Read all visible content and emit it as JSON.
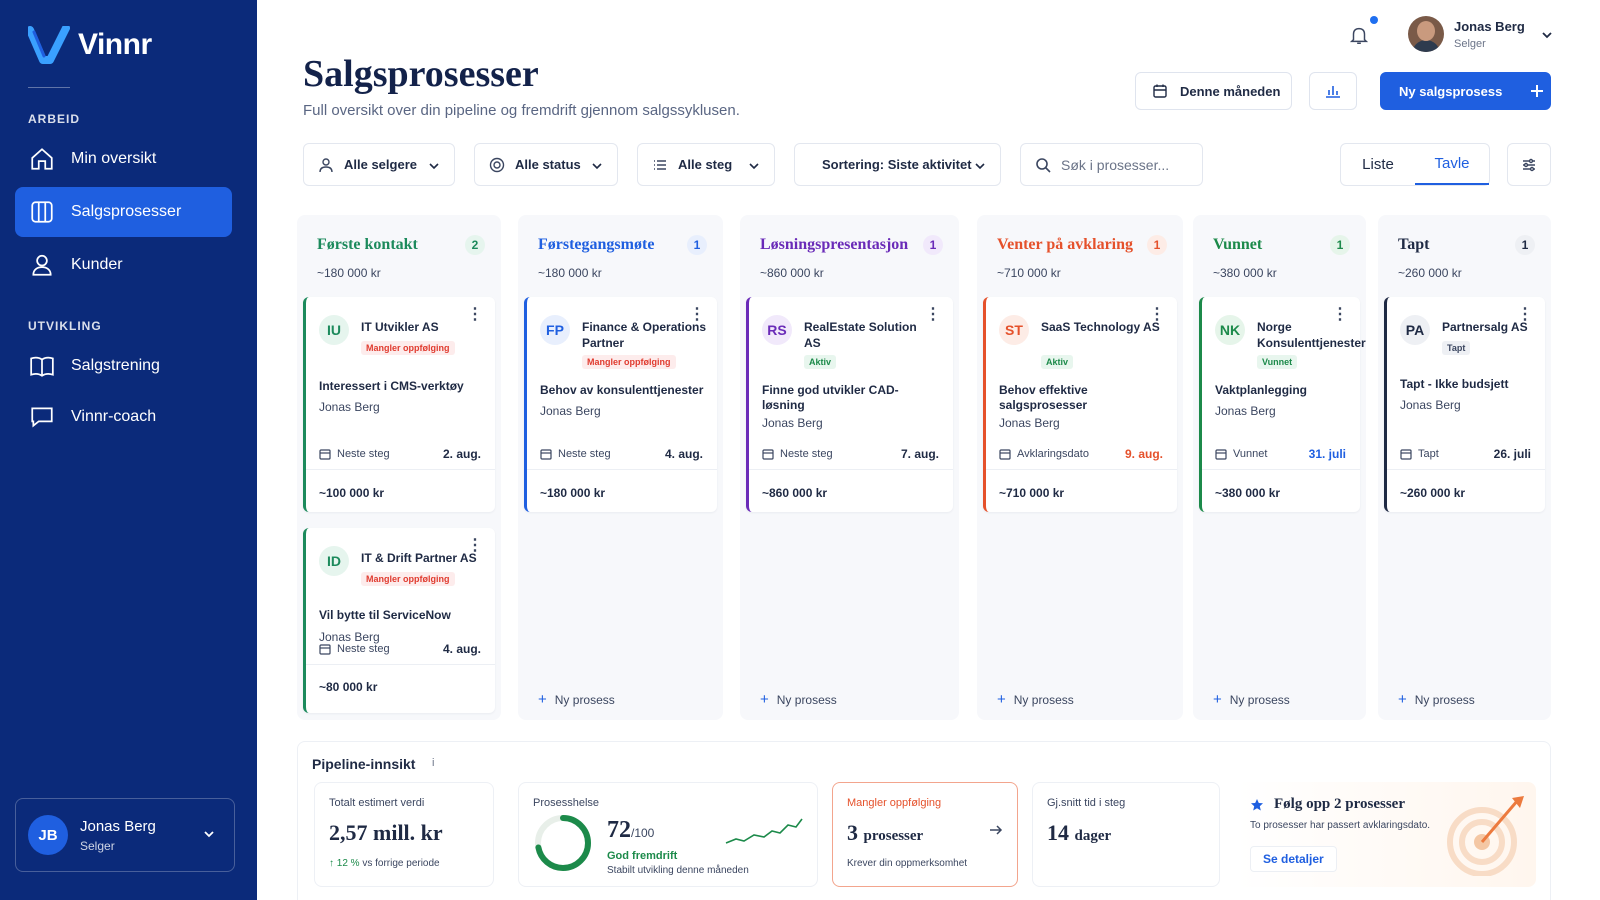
{
  "app": {
    "name": "Vinnr"
  },
  "sidebar": {
    "sections": [
      {
        "label": "ARBEID",
        "items": [
          {
            "label": "Min oversikt",
            "icon": "home-icon"
          },
          {
            "label": "Salgsprosesser",
            "icon": "board-icon",
            "active": true
          },
          {
            "label": "Kunder",
            "icon": "user-icon"
          }
        ]
      },
      {
        "label": "UTVIKLING",
        "items": [
          {
            "label": "Salgstrening",
            "icon": "book-icon"
          },
          {
            "label": "Vinnr-coach",
            "icon": "chat-icon"
          }
        ]
      }
    ],
    "user": {
      "initials": "JB",
      "name": "Jonas Berg",
      "role": "Selger"
    }
  },
  "topbar": {
    "user": {
      "name": "Jonas Berg",
      "role": "Selger"
    }
  },
  "page": {
    "title": "Salgsprosesser",
    "subtitle": "Full oversikt over din pipeline og fremdrift gjennom salgssyklusen."
  },
  "actions": {
    "period": "Denne måneden",
    "new_label": "Ny salgsprosess"
  },
  "filters": {
    "sellers": "Alle selgere",
    "status": "Alle status",
    "steps": "Alle steg",
    "sort": "Sortering: Siste aktivitet",
    "search_placeholder": "Søk i prosesser..."
  },
  "view": {
    "list": "Liste",
    "board": "Tavle",
    "active": "Tavle"
  },
  "columns": [
    {
      "title": "Første kontakt",
      "count": "2",
      "total": "~180 000 kr",
      "color": "#1c8a5c",
      "new_label": "",
      "cards": [
        {
          "initials": "IU",
          "company": "IT Utvikler AS",
          "badge": "Mangler oppfølging",
          "badge_type": "red",
          "desc": "Interessert i CMS-verktøy",
          "owner": "Jonas Berg",
          "step_label": "Neste steg",
          "step_date": "2. aug.",
          "value": "~100 000 kr"
        },
        {
          "initials": "ID",
          "company": "IT & Drift Partner AS",
          "badge": "Mangler oppfølging",
          "badge_type": "red",
          "desc": "Vil bytte til ServiceNow",
          "owner": "Jonas Berg",
          "step_label": "Neste steg",
          "step_date": "4. aug.",
          "value": "~80 000 kr"
        }
      ]
    },
    {
      "title": "Førstegangsmøte",
      "count": "1",
      "total": "~180 000 kr",
      "color": "#1f5fe0",
      "new_label": "Ny prosess",
      "cards": [
        {
          "initials": "FP",
          "company": "Finance & Operations Partner",
          "badge": "Mangler oppfølging",
          "badge_type": "red",
          "desc": "Behov av konsulenttjenester",
          "owner": "Jonas Berg",
          "step_label": "Neste steg",
          "step_date": "4. aug.",
          "value": "~180 000 kr"
        }
      ]
    },
    {
      "title": "Løsningspresentasjon",
      "count": "1",
      "total": "~860 000 kr",
      "color": "#6a2bb8",
      "new_label": "Ny prosess",
      "cards": [
        {
          "initials": "RS",
          "company": "RealEstate Solution AS",
          "badge": "Aktiv",
          "badge_type": "green",
          "desc": "Finne god utvikler CAD-løsning",
          "owner": "Jonas Berg",
          "step_label": "Neste steg",
          "step_date": "7. aug.",
          "value": "~860 000 kr"
        }
      ]
    },
    {
      "title": "Venter på avklaring",
      "count": "1",
      "total": "~710 000 kr",
      "color": "#e5512b",
      "new_label": "Ny prosess",
      "cards": [
        {
          "initials": "ST",
          "company": "SaaS Technology AS",
          "badge": "Aktiv",
          "badge_type": "green",
          "desc": "Behov effektive salgsprosesser",
          "owner": "Jonas Berg",
          "step_label": "Avklaringsdato",
          "step_date": "9. aug.",
          "value": "~710 000 kr"
        }
      ]
    },
    {
      "title": "Vunnet",
      "count": "1",
      "total": "~380 000 kr",
      "color": "#1c8a4a",
      "new_label": "Ny prosess",
      "cards": [
        {
          "initials": "NK",
          "company": "Norge Konsulenttjenester",
          "badge": "Vunnet",
          "badge_type": "green",
          "desc": "Vaktplanlegging",
          "owner": "Jonas Berg",
          "step_label": "Vunnet",
          "step_date": "31. juli",
          "value": "~380 000 kr"
        }
      ]
    },
    {
      "title": "Tapt",
      "count": "1",
      "total": "~260 000 kr",
      "color": "#1f2a44",
      "new_label": "Ny prosess",
      "cards": [
        {
          "initials": "PA",
          "company": "Partnersalg AS",
          "badge": "Tapt",
          "badge_type": "grey",
          "desc": "Tapt - Ikke budsjett",
          "owner": "Jonas Berg",
          "step_label": "Tapt",
          "step_date": "26. juli",
          "value": "~260 000 kr"
        }
      ]
    }
  ],
  "insights": {
    "title": "Pipeline-innsikt",
    "total": {
      "label": "Totalt estimert verdi",
      "value": "2,57 mill. kr",
      "change": "12 %",
      "change_text": "vs forrige periode"
    },
    "health": {
      "label": "Prosesshelse",
      "score": 72,
      "max": "/100",
      "status": "God fremdrift",
      "note": "Stabilt utvikling denne måneden"
    },
    "followup": {
      "label": "Mangler oppfølging",
      "count": "3",
      "unit": "prosesser",
      "note": "Krever din oppmerksomhet"
    },
    "avg": {
      "label": "Gj.snitt tid i steg",
      "value": "14",
      "unit": "dager"
    },
    "cta": {
      "title": "Følg opp 2 prosesser",
      "text": "To prosesser har passert avklaringsdato.",
      "link": "Se detaljer"
    }
  }
}
